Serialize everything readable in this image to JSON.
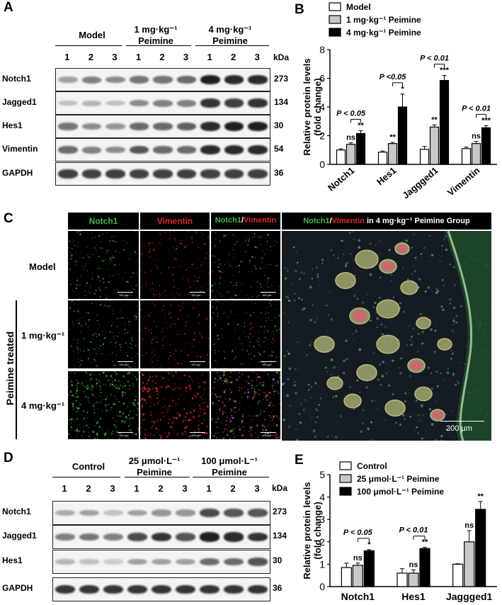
{
  "panelA": {
    "label": "A",
    "groups": [
      "Model",
      "1 mg·kg⁻¹\nPeimine",
      "4 mg·kg⁻¹\nPeimine"
    ],
    "lanes": [
      "1",
      "2",
      "3",
      "1",
      "2",
      "3",
      "1",
      "2",
      "3"
    ],
    "kda_header": "kDa",
    "rows": [
      {
        "name": "Notch1",
        "kda": "273",
        "intensity": [
          0.35,
          0.5,
          0.45,
          0.55,
          0.55,
          0.6,
          0.95,
          0.9,
          0.9
        ]
      },
      {
        "name": "Jagged1",
        "kda": "134",
        "intensity": [
          0.2,
          0.25,
          0.2,
          0.45,
          0.5,
          0.5,
          0.85,
          0.8,
          0.85
        ]
      },
      {
        "name": "Hes1",
        "kda": "30",
        "intensity": [
          0.55,
          0.45,
          0.4,
          0.6,
          0.6,
          0.65,
          0.9,
          0.95,
          0.95
        ]
      },
      {
        "name": "Vimentin",
        "kda": "54",
        "intensity": [
          0.6,
          0.5,
          0.45,
          0.7,
          0.6,
          0.6,
          0.9,
          0.9,
          0.9
        ]
      },
      {
        "name": "GAPDH",
        "kda": "36",
        "intensity": [
          0.8,
          0.8,
          0.8,
          0.8,
          0.8,
          0.8,
          0.8,
          0.8,
          0.8
        ]
      }
    ]
  },
  "panelD": {
    "label": "D",
    "groups": [
      "Control",
      "25 μmol·L⁻¹\nPeimine",
      "100 μmol·L⁻¹\nPeimine"
    ],
    "lanes": [
      "1",
      "2",
      "3",
      "1",
      "2",
      "3",
      "1",
      "2",
      "3"
    ],
    "kda_header": "kDa",
    "rows": [
      {
        "name": "Notch1",
        "kda": "273",
        "intensity": [
          0.3,
          0.35,
          0.2,
          0.35,
          0.4,
          0.4,
          0.75,
          0.7,
          0.7
        ]
      },
      {
        "name": "Jagged1",
        "kda": "134",
        "intensity": [
          0.5,
          0.55,
          0.5,
          0.75,
          0.85,
          0.7,
          0.95,
          0.9,
          0.85
        ]
      },
      {
        "name": "Hes1",
        "kda": "30",
        "intensity": [
          0.25,
          0.2,
          0.15,
          0.35,
          0.35,
          0.35,
          0.6,
          0.6,
          0.7
        ]
      },
      {
        "name": "GAPDH",
        "kda": "36",
        "intensity": [
          0.85,
          0.85,
          0.85,
          0.85,
          0.85,
          0.85,
          0.85,
          0.85,
          0.85
        ]
      }
    ]
  },
  "panelC": {
    "label": "C",
    "col_titles": {
      "notch": "Notch1",
      "vim": "Vimentin",
      "merge_a": "Notch1",
      "sep": "/",
      "merge_b": "Vimentin",
      "big_a": "Notch1",
      "big_sep": "/",
      "big_b": "Vimentin",
      "big_rest": " in 4 mg·kg⁻¹  Peimine Group"
    },
    "row_labels": [
      "Model",
      "1 mg·kg⁻¹",
      "4 mg·kg⁻¹"
    ],
    "side_label": "Peimine treated",
    "scale_small": "100 µm",
    "scale_big": "200 µm",
    "colors": {
      "green": "#49b649",
      "red": "#e0282a",
      "white": "#ffffff"
    }
  },
  "chart_data": [
    {
      "panel": "B",
      "type": "bar",
      "categories": [
        "Notch1",
        "Hes1",
        "Jaggged1",
        "Vimentin"
      ],
      "series": [
        {
          "name": "Model",
          "values": [
            1.0,
            0.85,
            1.05,
            1.1
          ],
          "errors": [
            0.08,
            0.08,
            0.2,
            0.1
          ],
          "color": "#ffffff"
        },
        {
          "name": "1 mg·kg⁻¹ Peimine",
          "values": [
            1.4,
            1.45,
            2.6,
            1.45
          ],
          "errors": [
            0.1,
            0.08,
            0.15,
            0.15
          ],
          "color": "#c8c8c8"
        },
        {
          "name": "4 mg·kg⁻¹ Peimine",
          "values": [
            2.15,
            4.0,
            5.85,
            2.55
          ],
          "errors": [
            0.2,
            0.9,
            0.35,
            0.15
          ],
          "color": "#000000"
        }
      ],
      "ylabel": "Relative protein levels\n(fold change)",
      "ylim": [
        0,
        8
      ],
      "yticks": [
        "0",
        "2",
        "4",
        "6",
        "8"
      ],
      "annotations": {
        "sig_series2": [
          "ns",
          "**",
          "**",
          "ns"
        ],
        "sig_series3": [
          "**",
          "*",
          "***",
          "***"
        ],
        "pvals": [
          "P < 0.05",
          "P <0.05",
          "P < 0.01",
          "P < 0.01"
        ]
      },
      "legend_position": "top"
    },
    {
      "panel": "E",
      "type": "bar",
      "categories": [
        "Notch1",
        "Hes1",
        "Jaggged1"
      ],
      "series": [
        {
          "name": "Control",
          "values": [
            0.85,
            0.6,
            1.0
          ],
          "errors": [
            0.2,
            0.2,
            0.02
          ],
          "color": "#ffffff"
        },
        {
          "name": "25 μmol·L⁻¹ Peimine",
          "values": [
            0.95,
            0.6,
            2.0
          ],
          "errors": [
            0.1,
            0.15,
            0.5
          ],
          "color": "#c8c8c8"
        },
        {
          "name": "100 μmol·L⁻¹ Peimine",
          "values": [
            1.6,
            1.7,
            3.45
          ],
          "errors": [
            0.05,
            0.05,
            0.35
          ],
          "color": "#000000"
        }
      ],
      "ylabel": "Relative protein levels\n(fold change)",
      "ylim": [
        0,
        5
      ],
      "yticks": [
        "0",
        "1",
        "2",
        "3",
        "4",
        "5"
      ],
      "annotations": {
        "sig_series2": [
          "ns",
          "ns",
          "ns"
        ],
        "sig_series3": [
          "*",
          "**",
          "**"
        ],
        "pvals": [
          "P < 0.05",
          "P < 0.01"
        ]
      },
      "legend_position": "top"
    }
  ]
}
